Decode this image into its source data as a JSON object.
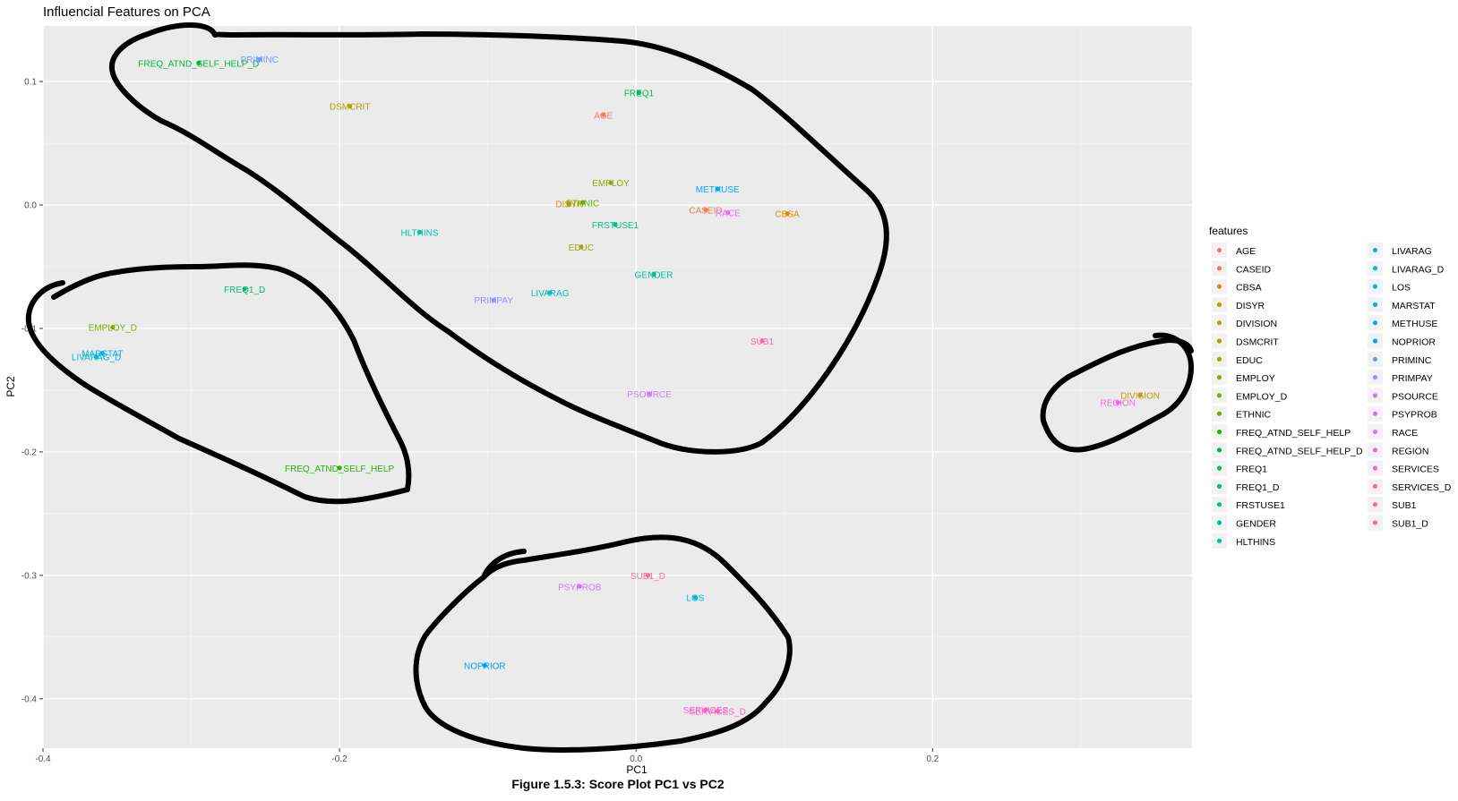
{
  "chart_data": {
    "type": "scatter",
    "title": "Influencial Features on PCA",
    "xlabel": "PC1",
    "ylabel": "PC2",
    "xlim": [
      -0.4,
      0.375
    ],
    "ylim": [
      -0.44,
      0.145
    ],
    "xticks": [
      {
        "v": -0.4,
        "label": "-0.4"
      },
      {
        "v": -0.2,
        "label": "-0.2"
      },
      {
        "v": 0.0,
        "label": "0.0"
      },
      {
        "v": 0.2,
        "label": "0.2"
      }
    ],
    "yticks": [
      {
        "v": 0.1,
        "label": "0.1"
      },
      {
        "v": 0.0,
        "label": "0.0"
      },
      {
        "v": -0.1,
        "label": "-0.1"
      },
      {
        "v": -0.2,
        "label": "-0.2"
      },
      {
        "v": -0.3,
        "label": "-0.3"
      },
      {
        "v": -0.4,
        "label": "-0.4"
      }
    ],
    "grid": true,
    "legend_title": "features",
    "legend_position": "right",
    "points": [
      {
        "name": "AGE",
        "x": -0.022,
        "y": 0.073,
        "color": "#F8766D"
      },
      {
        "name": "CASEID",
        "x": 0.047,
        "y": -0.004,
        "color": "#F17D51"
      },
      {
        "name": "CBSA",
        "x": 0.102,
        "y": -0.007,
        "color": "#E38900"
      },
      {
        "name": "DISYR",
        "x": -0.045,
        "y": 0.001,
        "color": "#D39200"
      },
      {
        "name": "DIVISION",
        "x": 0.34,
        "y": -0.154,
        "color": "#C49A00"
      },
      {
        "name": "DSMCRIT",
        "x": -0.193,
        "y": 0.08,
        "color": "#B3A000"
      },
      {
        "name": "EDUC",
        "x": -0.037,
        "y": -0.034,
        "color": "#A3A500"
      },
      {
        "name": "EMPLOY",
        "x": -0.017,
        "y": 0.018,
        "color": "#8FAA00"
      },
      {
        "name": "EMPLOY_D",
        "x": -0.353,
        "y": -0.099,
        "color": "#78AF00"
      },
      {
        "name": "ETHNIC",
        "x": -0.036,
        "y": 0.002,
        "color": "#5BB300"
      },
      {
        "name": "FREQ_ATND_SELF_HELP",
        "x": -0.2,
        "y": -0.213,
        "color": "#24B700"
      },
      {
        "name": "FREQ_ATND_SELF_HELP_D",
        "x": -0.295,
        "y": 0.115,
        "color": "#00BA38"
      },
      {
        "name": "FREQ1",
        "x": 0.002,
        "y": 0.091,
        "color": "#00BC59"
      },
      {
        "name": "FREQ1_D",
        "x": -0.264,
        "y": -0.068,
        "color": "#00BE72"
      },
      {
        "name": "FRSTUSE1",
        "x": -0.014,
        "y": -0.016,
        "color": "#00BF88"
      },
      {
        "name": "GENDER",
        "x": 0.012,
        "y": -0.056,
        "color": "#00C09C"
      },
      {
        "name": "HLTHINS",
        "x": -0.146,
        "y": -0.022,
        "color": "#00C1AE"
      },
      {
        "name": "LIVARAG",
        "x": -0.058,
        "y": -0.071,
        "color": "#00C0BF"
      },
      {
        "name": "LIVARAG_D",
        "x": -0.364,
        "y": -0.123,
        "color": "#00BDD0"
      },
      {
        "name": "LOS",
        "x": 0.04,
        "y": -0.318,
        "color": "#00B9DE"
      },
      {
        "name": "MARSTAT",
        "x": -0.36,
        "y": -0.12,
        "color": "#00B3EB"
      },
      {
        "name": "METHUSE",
        "x": 0.055,
        "y": 0.013,
        "color": "#00ABF7"
      },
      {
        "name": "NOPRIOR",
        "x": -0.102,
        "y": -0.373,
        "color": "#00A2FF"
      },
      {
        "name": "PRIMINC",
        "x": -0.254,
        "y": 0.118,
        "color": "#6B9DFF"
      },
      {
        "name": "PRIMPAY",
        "x": -0.096,
        "y": -0.077,
        "color": "#9590FF"
      },
      {
        "name": "PSOURCE",
        "x": 0.009,
        "y": -0.153,
        "color": "#C77CFF"
      },
      {
        "name": "PSYPROB",
        "x": -0.038,
        "y": -0.309,
        "color": "#D274FA"
      },
      {
        "name": "RACE",
        "x": 0.062,
        "y": -0.006,
        "color": "#E76BF3"
      },
      {
        "name": "REGION",
        "x": 0.325,
        "y": -0.16,
        "color": "#F266E5"
      },
      {
        "name": "SERVICES",
        "x": 0.047,
        "y": -0.409,
        "color": "#FA62D4"
      },
      {
        "name": "SERVICES_D",
        "x": 0.055,
        "y": -0.41,
        "color": "#FF62BC"
      },
      {
        "name": "SUB1",
        "x": 0.085,
        "y": -0.11,
        "color": "#FF65AA"
      },
      {
        "name": "SUB1_D",
        "x": 0.008,
        "y": -0.3,
        "color": "#FC6D96"
      }
    ]
  },
  "caption": "Figure 1.5.3: Score Plot PC1 vs PC2"
}
